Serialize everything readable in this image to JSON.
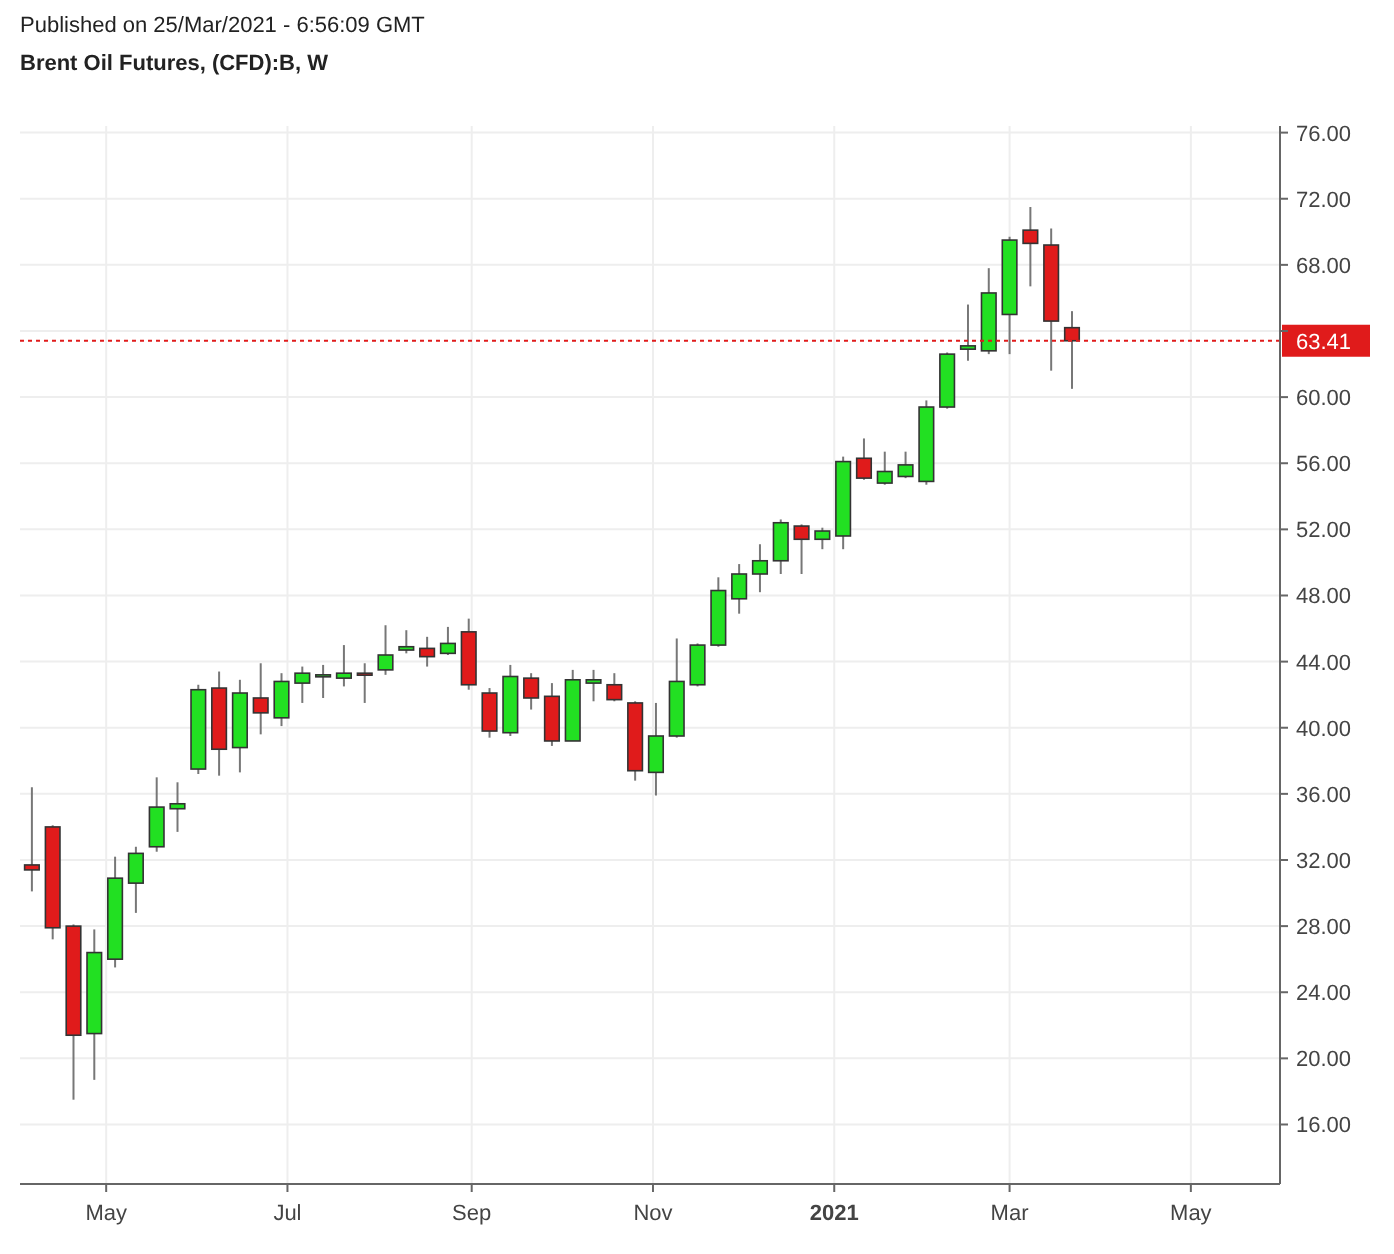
{
  "chart_data": {
    "type": "candlestick",
    "title": "Brent Oil Futures, (CFD):B, W",
    "annotations": [
      "Published on 25/Mar/2021 - 6:56:09 GMT"
    ],
    "x": [
      "2020-04-06",
      "2020-04-13",
      "2020-04-20",
      "2020-04-27",
      "2020-05-04",
      "2020-05-11",
      "2020-05-18",
      "2020-05-25",
      "2020-06-01",
      "2020-06-08",
      "2020-06-15",
      "2020-06-22",
      "2020-06-29",
      "2020-07-06",
      "2020-07-13",
      "2020-07-20",
      "2020-07-27",
      "2020-08-03",
      "2020-08-10",
      "2020-08-17",
      "2020-08-24",
      "2020-08-31",
      "2020-09-07",
      "2020-09-14",
      "2020-09-21",
      "2020-09-28",
      "2020-10-05",
      "2020-10-12",
      "2020-10-19",
      "2020-10-26",
      "2020-11-02",
      "2020-11-09",
      "2020-11-16",
      "2020-11-23",
      "2020-11-30",
      "2020-12-07",
      "2020-12-14",
      "2020-12-21",
      "2020-12-28",
      "2021-01-04",
      "2021-01-11",
      "2021-01-18",
      "2021-01-25",
      "2021-02-01",
      "2021-02-08",
      "2021-02-15",
      "2021-02-22",
      "2021-03-01",
      "2021-03-08",
      "2021-03-15",
      "2021-03-22"
    ],
    "ohlc": [
      [
        31.7,
        36.4,
        30.1,
        31.4
      ],
      [
        34.0,
        34.1,
        27.2,
        27.9
      ],
      [
        28.0,
        28.1,
        17.5,
        21.4
      ],
      [
        21.5,
        27.8,
        18.7,
        26.4
      ],
      [
        26.0,
        32.2,
        25.5,
        30.9
      ],
      [
        30.6,
        32.8,
        28.8,
        32.4
      ],
      [
        32.8,
        37.0,
        32.5,
        35.2
      ],
      [
        35.1,
        36.7,
        33.7,
        35.4
      ],
      [
        37.5,
        42.6,
        37.2,
        42.3
      ],
      [
        42.4,
        43.4,
        37.1,
        38.7
      ],
      [
        38.8,
        42.9,
        37.3,
        42.1
      ],
      [
        41.8,
        43.9,
        39.6,
        40.9
      ],
      [
        40.6,
        43.3,
        40.1,
        42.8
      ],
      [
        42.7,
        43.7,
        41.5,
        43.3
      ],
      [
        43.1,
        43.8,
        41.8,
        43.2
      ],
      [
        43.0,
        45.0,
        42.5,
        43.3
      ],
      [
        43.3,
        43.9,
        41.5,
        43.2
      ],
      [
        43.5,
        46.2,
        43.2,
        44.4
      ],
      [
        44.7,
        45.9,
        44.5,
        44.9
      ],
      [
        44.8,
        45.5,
        43.7,
        44.3
      ],
      [
        44.5,
        46.1,
        44.4,
        45.1
      ],
      [
        45.8,
        46.6,
        42.3,
        42.6
      ],
      [
        42.1,
        42.4,
        39.4,
        39.8
      ],
      [
        39.7,
        43.8,
        39.5,
        43.1
      ],
      [
        43.0,
        43.3,
        41.1,
        41.8
      ],
      [
        41.9,
        42.7,
        38.9,
        39.2
      ],
      [
        39.2,
        43.5,
        39.2,
        42.9
      ],
      [
        42.7,
        43.5,
        41.6,
        42.9
      ],
      [
        42.6,
        43.3,
        41.6,
        41.7
      ],
      [
        41.5,
        41.6,
        36.8,
        37.4
      ],
      [
        37.3,
        41.5,
        35.9,
        39.5
      ],
      [
        39.5,
        45.4,
        39.4,
        42.8
      ],
      [
        42.6,
        45.1,
        42.5,
        45.0
      ],
      [
        45.0,
        49.1,
        44.9,
        48.3
      ],
      [
        47.8,
        49.9,
        46.9,
        49.3
      ],
      [
        49.3,
        51.1,
        48.2,
        50.1
      ],
      [
        50.1,
        52.6,
        49.3,
        52.4
      ],
      [
        52.2,
        52.3,
        49.3,
        51.4
      ],
      [
        51.4,
        52.1,
        50.8,
        51.9
      ],
      [
        51.6,
        56.4,
        50.8,
        56.1
      ],
      [
        56.3,
        57.5,
        55.0,
        55.1
      ],
      [
        54.8,
        56.7,
        54.7,
        55.5
      ],
      [
        55.2,
        56.7,
        55.1,
        55.9
      ],
      [
        54.9,
        59.8,
        54.7,
        59.4
      ],
      [
        59.4,
        62.7,
        59.3,
        62.6
      ],
      [
        62.9,
        65.6,
        62.2,
        63.1
      ],
      [
        62.8,
        67.8,
        62.6,
        66.3
      ],
      [
        65.0,
        69.7,
        62.6,
        69.5
      ],
      [
        70.1,
        71.5,
        66.7,
        69.3
      ],
      [
        69.2,
        70.2,
        61.6,
        64.6
      ],
      [
        64.2,
        65.2,
        60.5,
        63.41
      ]
    ],
    "colors": [
      "#e01b1b",
      "#e01b1b",
      "#e01b1b",
      "#22e022",
      "#22e022",
      "#22e022",
      "#22e022",
      "#22e022",
      "#22e022",
      "#e01b1b",
      "#22e022",
      "#e01b1b",
      "#22e022",
      "#22e022",
      "#22e022",
      "#22e022",
      "#e01b1b",
      "#22e022",
      "#22e022",
      "#e01b1b",
      "#22e022",
      "#e01b1b",
      "#e01b1b",
      "#22e022",
      "#e01b1b",
      "#e01b1b",
      "#22e022",
      "#22e022",
      "#e01b1b",
      "#e01b1b",
      "#22e022",
      "#22e022",
      "#22e022",
      "#22e022",
      "#22e022",
      "#22e022",
      "#22e022",
      "#e01b1b",
      "#22e022",
      "#22e022",
      "#e01b1b",
      "#22e022",
      "#22e022",
      "#22e022",
      "#22e022",
      "#22e022",
      "#22e022",
      "#22e022",
      "#e01b1b",
      "#e01b1b",
      "#e01b1b"
    ],
    "xlim": [
      "2020-04-02",
      "2021-05-31"
    ],
    "xticks": [
      {
        "value": "2020-05-01",
        "label": "May"
      },
      {
        "value": "2020-07-01",
        "label": "Jul"
      },
      {
        "value": "2020-09-01",
        "label": "Sep"
      },
      {
        "value": "2020-11-01",
        "label": "Nov"
      },
      {
        "value": "2021-01-01",
        "label": "2021"
      },
      {
        "value": "2021-03-01",
        "label": "Mar"
      },
      {
        "value": "2021-05-01",
        "label": "May"
      }
    ],
    "ylim": [
      12.4,
      76.4
    ],
    "yticks": [
      {
        "value": 16,
        "label": "16.00"
      },
      {
        "value": 20,
        "label": "20.00"
      },
      {
        "value": 24,
        "label": "24.00"
      },
      {
        "value": 28,
        "label": "28.00"
      },
      {
        "value": 32,
        "label": "32.00"
      },
      {
        "value": 36,
        "label": "36.00"
      },
      {
        "value": 40,
        "label": "40.00"
      },
      {
        "value": 44,
        "label": "44.00"
      },
      {
        "value": 48,
        "label": "48.00"
      },
      {
        "value": 52,
        "label": "52.00"
      },
      {
        "value": 56,
        "label": "56.00"
      },
      {
        "value": 60,
        "label": "60.00"
      },
      {
        "value": 64,
        "label": null
      },
      {
        "value": 68,
        "label": "68.00"
      },
      {
        "value": 72,
        "label": "72.00"
      },
      {
        "value": 76,
        "label": "76.00"
      }
    ],
    "ref_lines": [
      {
        "axis": "y",
        "value": 63.41,
        "label": "63.41",
        "color": "#e01b1b",
        "line_style": "dotted"
      }
    ],
    "grid": true
  }
}
